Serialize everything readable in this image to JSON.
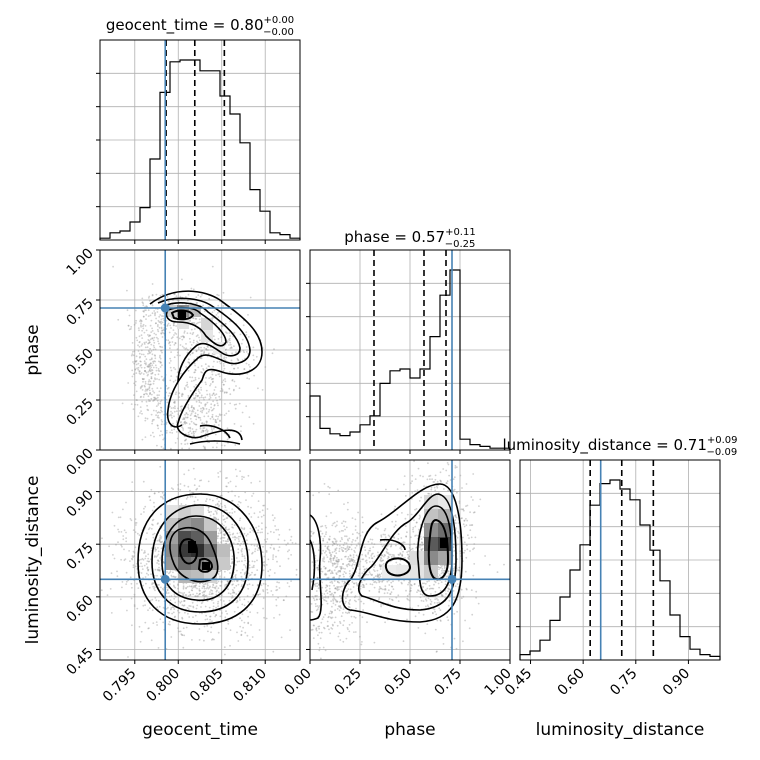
{
  "chart_data": {
    "type": "corner",
    "parameters": [
      "geocent_time",
      "phase",
      "luminosity_distance"
    ],
    "truth": {
      "geocent_time": 0.7985,
      "phase": 0.71,
      "luminosity_distance": 0.65
    },
    "titles": [
      {
        "param": "geocent_time",
        "median": "0.80",
        "plus": "+0.00",
        "minus": "−0.00"
      },
      {
        "param": "phase",
        "median": "0.57",
        "plus": "+0.11",
        "minus": "−0.25"
      },
      {
        "param": "luminosity_distance",
        "median": "0.71",
        "plus": "+0.09",
        "minus": "−0.09"
      }
    ],
    "axes": {
      "geocent_time": {
        "range": [
          0.791,
          0.814
        ],
        "ticks": [
          "0.795",
          "0.800",
          "0.805",
          "0.810"
        ],
        "tick_values": [
          0.795,
          0.8,
          0.805,
          0.81
        ]
      },
      "phase": {
        "range": [
          0.0,
          1.0
        ],
        "ticks": [
          "0.00",
          "0.25",
          "0.50",
          "0.75",
          "1.00"
        ],
        "tick_values": [
          0.0,
          0.25,
          0.5,
          0.75,
          1.0
        ]
      },
      "luminosity_distance": {
        "range": [
          0.42,
          0.99
        ],
        "ticks": [
          "0.45",
          "0.60",
          "0.75",
          "0.90"
        ],
        "tick_values": [
          0.45,
          0.6,
          0.75,
          0.9
        ]
      }
    },
    "quantiles": {
      "geocent_time": [
        0.7986,
        0.8019,
        0.8053
      ],
      "phase": [
        0.32,
        0.57,
        0.68
      ],
      "luminosity_distance": [
        0.62,
        0.71,
        0.8
      ]
    },
    "histograms": {
      "geocent_time": {
        "bin_edges": [
          0.791,
          0.79215,
          0.7933,
          0.79445,
          0.7956,
          0.79675,
          0.7979,
          0.79905,
          0.8002,
          0.80135,
          0.8025,
          0.80365,
          0.8048,
          0.80595,
          0.8071,
          0.80825,
          0.8094,
          0.81055,
          0.8117,
          0.81285,
          0.814
        ],
        "counts": [
          0.01,
          0.04,
          0.05,
          0.1,
          0.18,
          0.45,
          0.82,
          0.99,
          1.0,
          1.0,
          0.94,
          0.94,
          0.8,
          0.7,
          0.54,
          0.28,
          0.16,
          0.04,
          0.03,
          0.01
        ]
      },
      "phase": {
        "bin_edges": [
          0.0,
          0.05,
          0.1,
          0.15,
          0.2,
          0.25,
          0.3,
          0.35,
          0.4,
          0.45,
          0.5,
          0.55,
          0.6,
          0.65,
          0.7,
          0.75,
          0.8,
          0.85,
          0.9,
          0.95,
          1.0
        ],
        "counts": [
          0.3,
          0.12,
          0.09,
          0.08,
          0.1,
          0.14,
          0.19,
          0.37,
          0.44,
          0.45,
          0.4,
          0.45,
          0.63,
          0.86,
          1.0,
          0.06,
          0.03,
          0.02,
          0.01,
          0.01
        ]
      },
      "luminosity_distance": {
        "bin_edges": [
          0.42,
          0.4485,
          0.477,
          0.5055,
          0.534,
          0.5625,
          0.591,
          0.6195,
          0.648,
          0.6765,
          0.705,
          0.7335,
          0.762,
          0.7905,
          0.819,
          0.8475,
          0.876,
          0.9045,
          0.933,
          0.9615,
          0.99
        ],
        "counts": [
          0.03,
          0.05,
          0.11,
          0.22,
          0.35,
          0.5,
          0.64,
          0.86,
          0.98,
          1.0,
          0.95,
          0.89,
          0.75,
          0.61,
          0.44,
          0.25,
          0.13,
          0.06,
          0.03,
          0.02
        ]
      }
    },
    "colors": {
      "truth": "#4682b4",
      "line": "#000000",
      "grid": "#b0b0b0",
      "scatter": "#9a9a9a"
    }
  }
}
